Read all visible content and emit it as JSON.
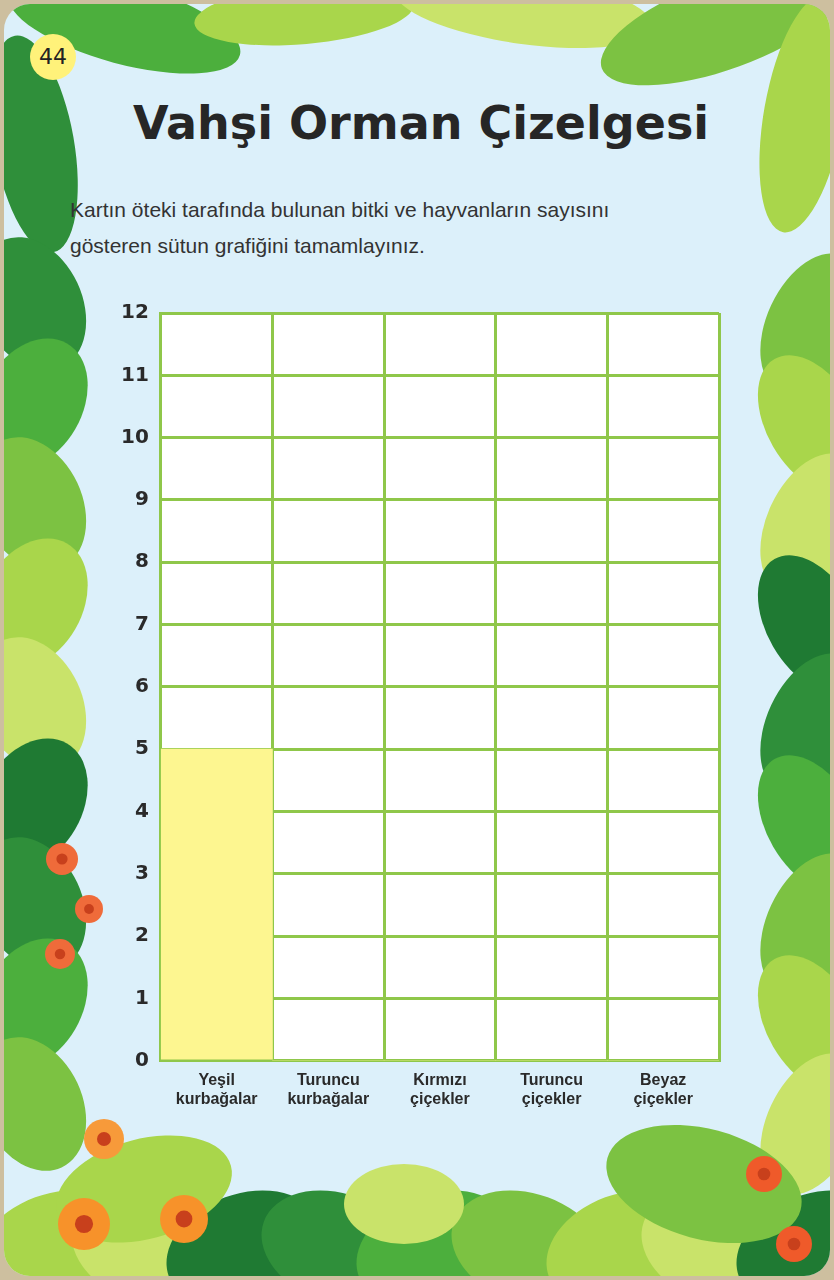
{
  "card_number": "44",
  "chart_data": {
    "type": "bar",
    "title": "Vahşi Orman Çizelgesi",
    "subtitle": "Kartın öteki tarafında bulunan bitki ve hayvanların sayısını gösteren sütun grafiğini tamamlayınız.",
    "categories": [
      "Yeşil kurbağalar",
      "Turuncu kurbağalar",
      "Kırmızı çiçekler",
      "Turuncu çiçekler",
      "Beyaz çiçekler"
    ],
    "values": [
      5,
      0,
      0,
      0,
      0
    ],
    "color": "#fdf690",
    "ylim": [
      0,
      12
    ],
    "yticks": [
      0,
      1,
      2,
      3,
      4,
      5,
      6,
      7,
      8,
      9,
      10,
      11,
      12
    ],
    "grid": true
  }
}
